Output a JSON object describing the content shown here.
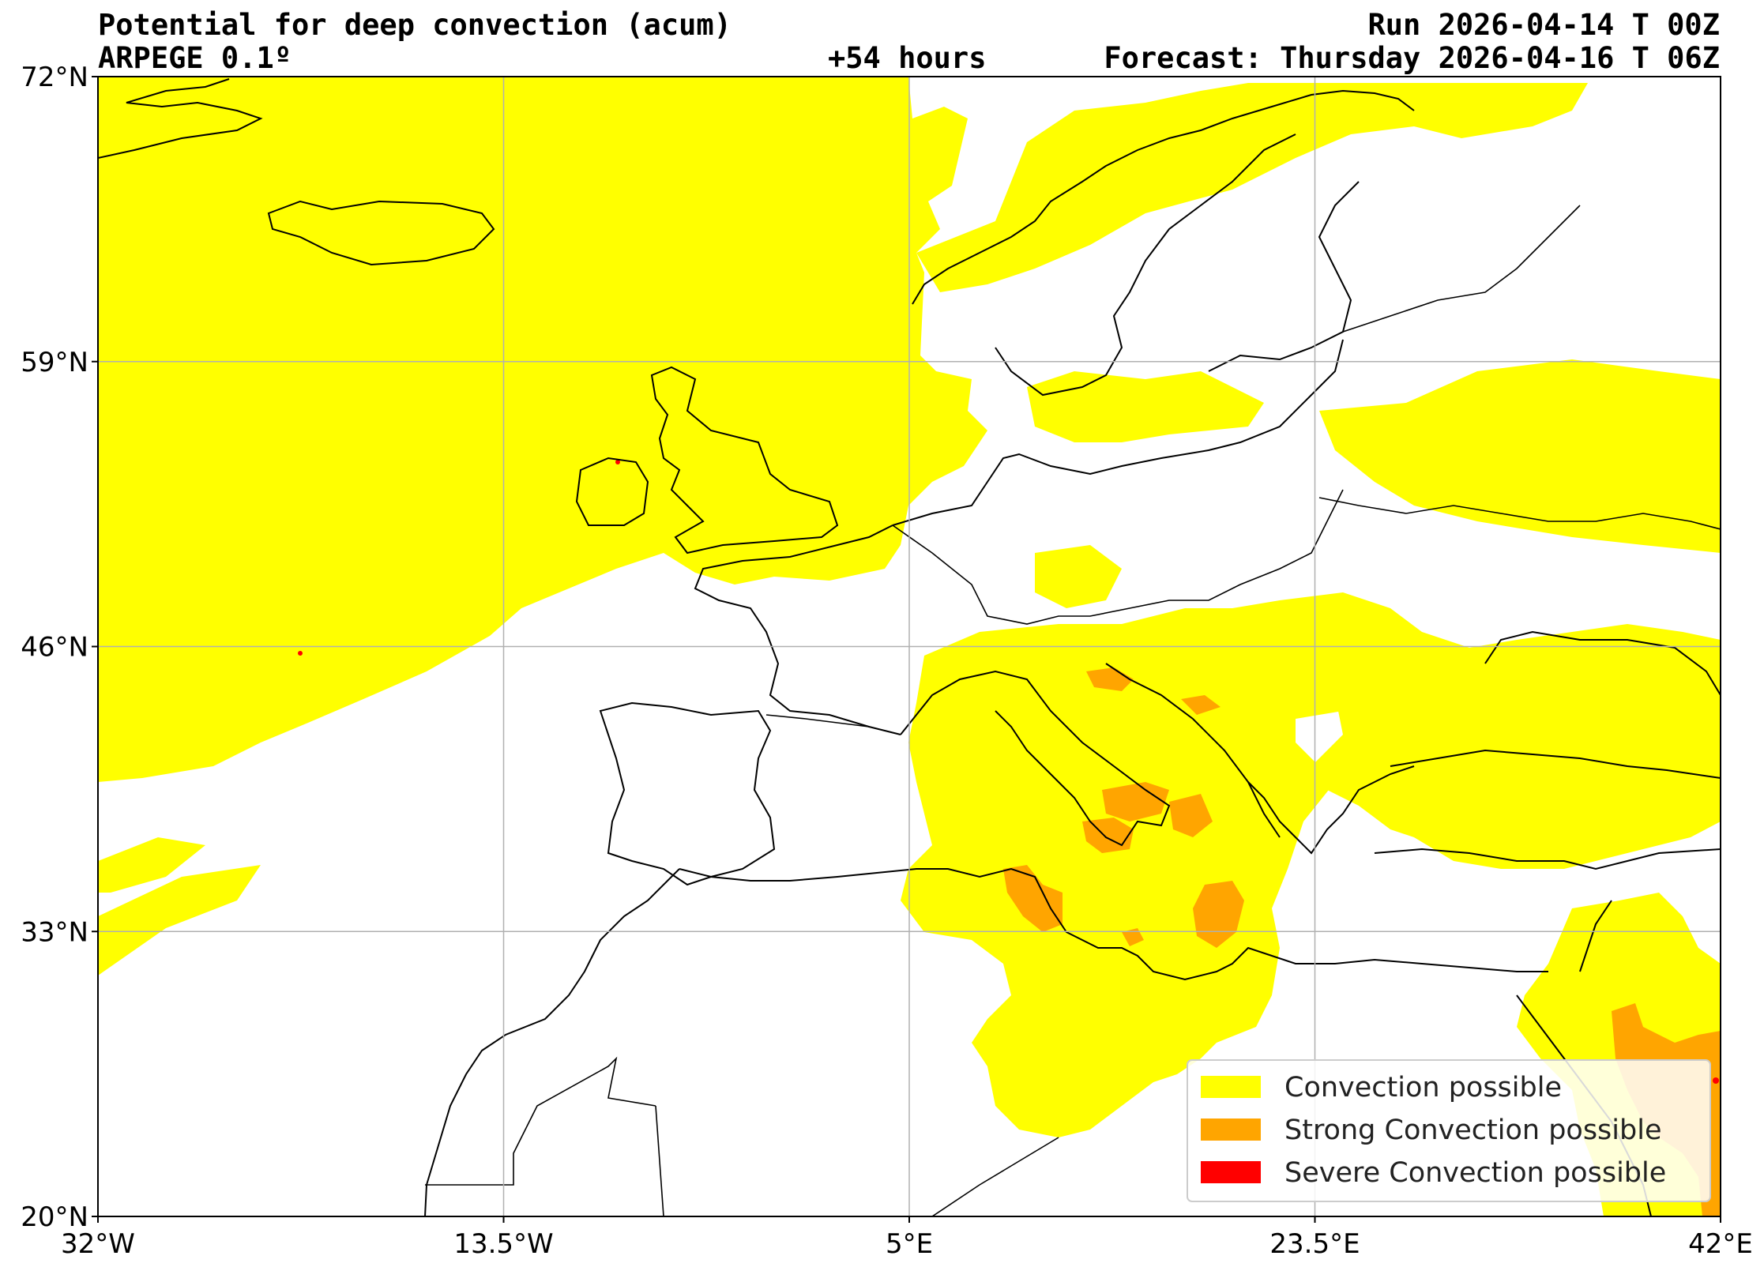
{
  "header": {
    "title": "Potential for deep convection (acum)",
    "model": "ARPEGE 0.1º",
    "lead": "+54 hours",
    "run": "Run 2026-04-14 T 00Z",
    "forecast": "Forecast: Thursday 2026-04-16 T 06Z"
  },
  "map": {
    "lon_range": [
      -32,
      42
    ],
    "lat_range": [
      20,
      72
    ],
    "x_ticks": [
      {
        "value": -32,
        "label": "32°W"
      },
      {
        "value": -13.5,
        "label": "13.5°W"
      },
      {
        "value": 5,
        "label": "5°E"
      },
      {
        "value": 23.5,
        "label": "23.5°E"
      },
      {
        "value": 42,
        "label": "42°E"
      }
    ],
    "y_ticks": [
      {
        "value": 72,
        "label": "72°N"
      },
      {
        "value": 59,
        "label": "59°N"
      },
      {
        "value": 46,
        "label": "46°N"
      },
      {
        "value": 33,
        "label": "33°N"
      },
      {
        "value": 20,
        "label": "20°N"
      }
    ],
    "grid": true,
    "legend_position": "bottom-right",
    "legend": [
      {
        "label": "Convection possible",
        "color": "#ffff00"
      },
      {
        "label": "Strong Convection possible",
        "color": "#ffa500"
      },
      {
        "label": "Severe Convection possible",
        "color": "#ff0000"
      }
    ],
    "background_color": "#ffffff",
    "coastline_color": "#000000"
  }
}
